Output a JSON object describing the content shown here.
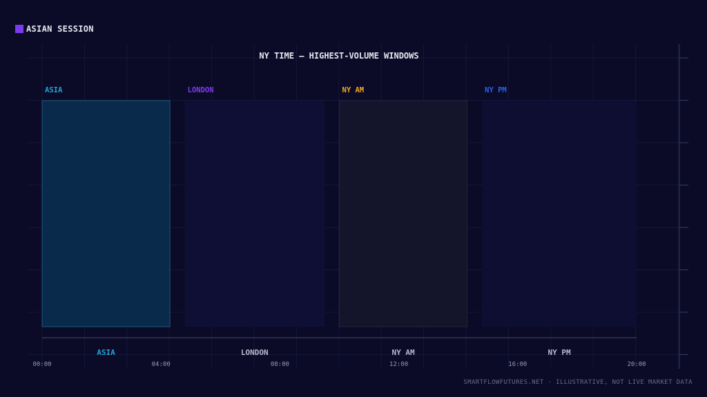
{
  "legend": {
    "label": "ASIAN SESSION",
    "color": "#7c3aed"
  },
  "footer": "SMARTFLOWFUTURES.NET · ILLUSTRATIVE, NOT LIVE MARKET DATA",
  "chart_data": {
    "type": "bar",
    "title": "NY TIME — HIGHEST-VOLUME WINDOWS",
    "xlabel": "",
    "ylabel": "",
    "x_unit": "hour (NY time)",
    "xlim": [
      0,
      20
    ],
    "x_ticks": [
      "00:00",
      "04:00",
      "08:00",
      "12:00",
      "16:00",
      "20:00"
    ],
    "grid": true,
    "legend_position": "top-left",
    "sessions": [
      {
        "name": "ASIA",
        "start": 0,
        "end": 4.3,
        "label_color": "#22a3d6",
        "fill": "#0a2a4c",
        "stroke": "#1c5a7a",
        "band_label_color": "#22a3d6"
      },
      {
        "name": "LONDON",
        "start": 4.8,
        "end": 9.5,
        "label_color": "#7c3aed",
        "fill": "#0f0f35",
        "stroke": "none",
        "band_label_color": "#b8b8cc"
      },
      {
        "name": "NY AM",
        "start": 10,
        "end": 14.3,
        "label_color": "#f5a524",
        "fill": "#14142a",
        "stroke": "#242438",
        "band_label_color": "#b8b8cc"
      },
      {
        "name": "NY PM",
        "start": 14.8,
        "end": 20,
        "label_color": "#2563eb",
        "fill": "#0e0e33",
        "stroke": "none",
        "band_label_color": "#b8b8cc"
      }
    ]
  }
}
